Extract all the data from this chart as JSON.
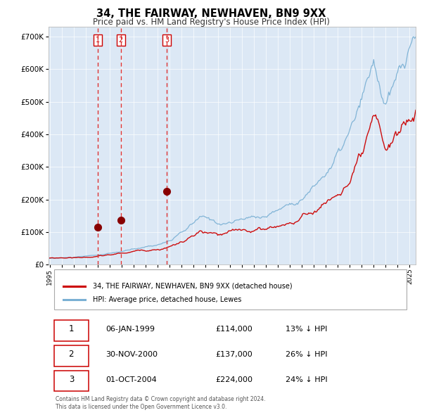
{
  "title": "34, THE FAIRWAY, NEWHAVEN, BN9 9XX",
  "subtitle": "Price paid vs. HM Land Registry's House Price Index (HPI)",
  "legend_red": "34, THE FAIRWAY, NEWHAVEN, BN9 9XX (detached house)",
  "legend_blue": "HPI: Average price, detached house, Lewes",
  "sales": [
    {
      "num": 1,
      "date_label": "06-JAN-1999",
      "price": 114000,
      "pct": "13%",
      "dir": "↓",
      "x_year": 1999.02
    },
    {
      "num": 2,
      "date_label": "30-NOV-2000",
      "price": 137000,
      "pct": "26%",
      "dir": "↓",
      "x_year": 2000.92
    },
    {
      "num": 3,
      "date_label": "01-OCT-2004",
      "price": 224000,
      "pct": "24%",
      "dir": "↓",
      "x_year": 2004.75
    }
  ],
  "sale_points_y": [
    114000,
    137000,
    224000
  ],
  "copyright": "Contains HM Land Registry data © Crown copyright and database right 2024.\nThis data is licensed under the Open Government Licence v3.0.",
  "plot_bg": "#dce8f5",
  "ylim": [
    0,
    730000
  ],
  "xlim_start": 1994.9,
  "xlim_end": 2025.5,
  "red_color": "#cc0000",
  "blue_color": "#7ab0d4",
  "vline_color": "#dd3333",
  "marker_color": "#880000",
  "grid_color": "#ffffff",
  "title_fontsize": 10.5,
  "subtitle_fontsize": 8.5
}
